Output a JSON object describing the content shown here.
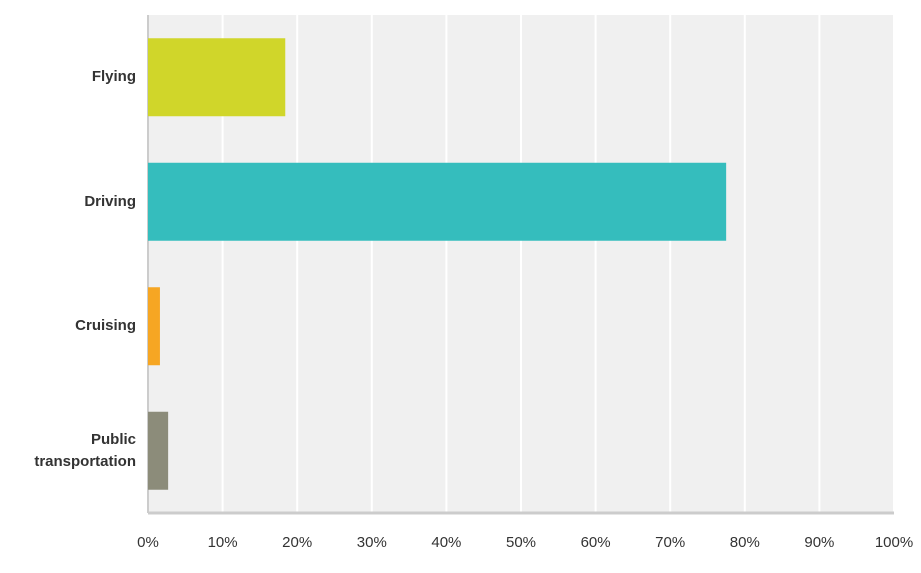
{
  "chart_data": {
    "type": "hbar",
    "categories": [
      "Flying",
      "Driving",
      "Cruising",
      "Public transportation"
    ],
    "values": [
      18.4,
      77.5,
      1.6,
      2.7
    ],
    "colors": [
      "#d0d62a",
      "#35bdbd",
      "#f6a623",
      "#8c8c7a"
    ],
    "xlim": [
      0,
      100
    ],
    "xticks": [
      {
        "value": 0,
        "label": "0%"
      },
      {
        "value": 10,
        "label": "10%"
      },
      {
        "value": 20,
        "label": "20%"
      },
      {
        "value": 30,
        "label": "30%"
      },
      {
        "value": 40,
        "label": "40%"
      },
      {
        "value": 50,
        "label": "50%"
      },
      {
        "value": 60,
        "label": "60%"
      },
      {
        "value": 70,
        "label": "70%"
      },
      {
        "value": 80,
        "label": "80%"
      },
      {
        "value": 90,
        "label": "90%"
      },
      {
        "value": 100,
        "label": "100%"
      }
    ],
    "grid": true
  }
}
